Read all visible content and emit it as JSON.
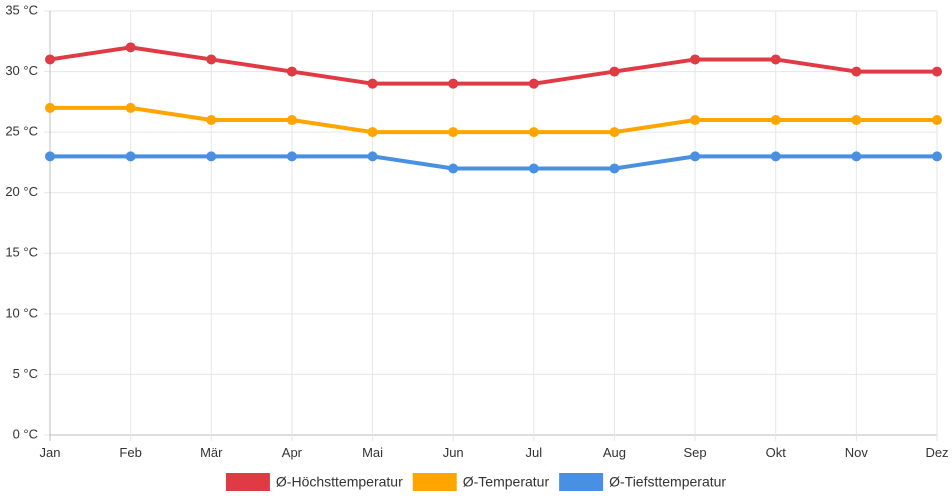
{
  "chart_data": {
    "type": "line",
    "categories": [
      "Jan",
      "Feb",
      "Mär",
      "Apr",
      "Mai",
      "Jun",
      "Jul",
      "Aug",
      "Sep",
      "Okt",
      "Nov",
      "Dez"
    ],
    "y_ticks": [
      "0 °C",
      "5 °C",
      "10 °C",
      "15 °C",
      "20 °C",
      "25 °C",
      "30 °C",
      "35 °C"
    ],
    "ylim": [
      0,
      35
    ],
    "y_step": 5,
    "grid": true,
    "legend_position": "bottom",
    "series": [
      {
        "name": "Ø-Höchsttemperatur",
        "color": "#e03a45",
        "values": [
          31,
          32,
          31,
          30,
          29,
          29,
          29,
          30,
          31,
          31,
          30,
          30
        ]
      },
      {
        "name": "Ø-Temperatur",
        "color": "#ffa500",
        "values": [
          27,
          27,
          26,
          26,
          25,
          25,
          25,
          25,
          26,
          26,
          26,
          26
        ]
      },
      {
        "name": "Ø-Tiefsttemperatur",
        "color": "#4a90e2",
        "values": [
          23,
          23,
          23,
          23,
          23,
          22,
          22,
          22,
          23,
          23,
          23,
          23
        ]
      }
    ]
  }
}
